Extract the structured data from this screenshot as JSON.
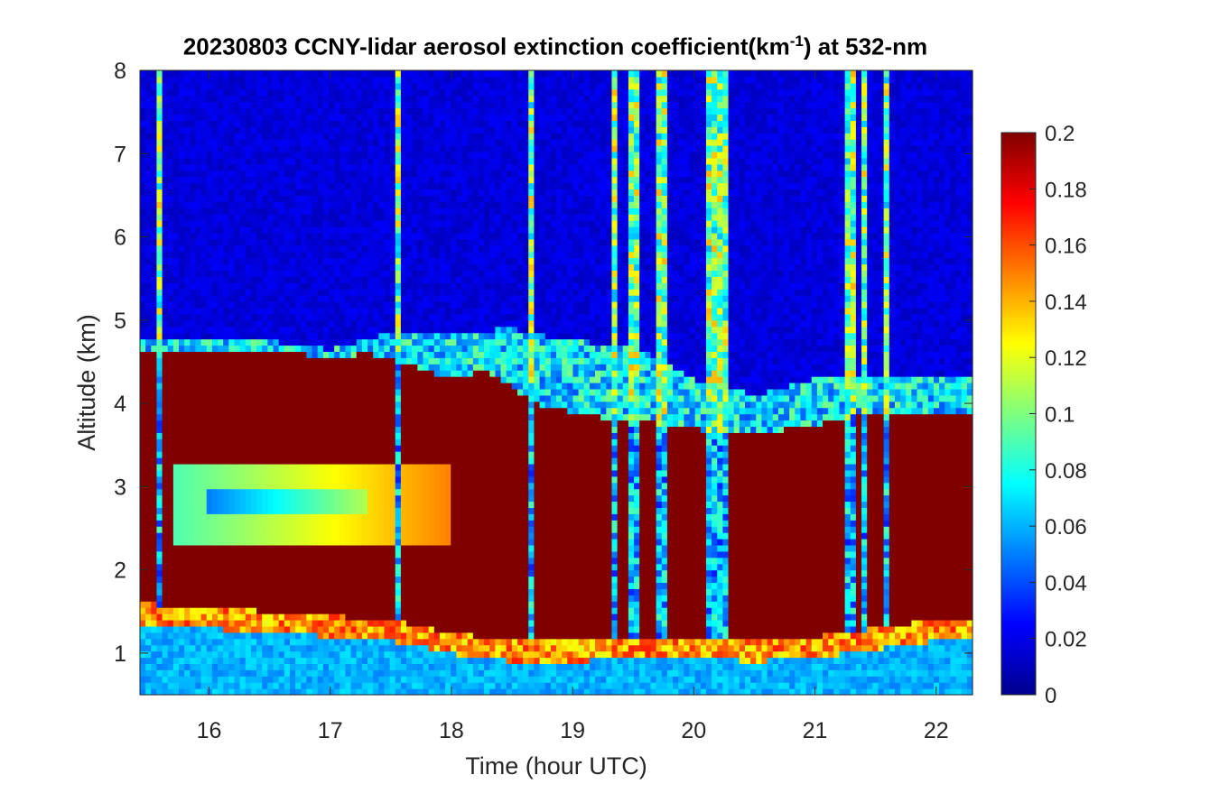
{
  "title": {
    "prefix": "20230803 CCNY-lidar aerosol extinction coefficient(km",
    "superscript": "-1",
    "suffix": ") at 532-nm"
  },
  "chart_data": {
    "type": "heatmap",
    "xlabel": "Time (hour UTC)",
    "ylabel": "Altitude (km)",
    "xlim": [
      15.43,
      22.3
    ],
    "ylim": [
      0.5,
      8
    ],
    "xticks": [
      16,
      17,
      18,
      19,
      20,
      21,
      22
    ],
    "yticks": [
      1,
      2,
      3,
      4,
      5,
      6,
      7,
      8
    ],
    "colorbar": {
      "colormap": "jet",
      "clim": [
        0,
        0.2
      ],
      "ticks": [
        "0",
        "0.02",
        "0.04",
        "0.06",
        "0.08",
        "0.1",
        "0.12",
        "0.14",
        "0.16",
        "0.18",
        "0.2"
      ]
    },
    "features": {
      "boundary_layer_top_km": [
        [
          15.43,
          1.6
        ],
        [
          16.0,
          1.55
        ],
        [
          16.5,
          1.5
        ],
        [
          17.0,
          1.45
        ],
        [
          17.5,
          1.4
        ],
        [
          18.0,
          1.25
        ],
        [
          18.5,
          1.15
        ],
        [
          19.0,
          1.15
        ],
        [
          19.5,
          1.2
        ],
        [
          20.0,
          1.2
        ],
        [
          20.5,
          1.15
        ],
        [
          21.0,
          1.2
        ],
        [
          21.5,
          1.3
        ],
        [
          22.0,
          1.4
        ],
        [
          22.3,
          1.4
        ]
      ],
      "smoke_layer_top_km": [
        [
          15.43,
          4.65
        ],
        [
          15.7,
          4.65
        ],
        [
          16.0,
          4.65
        ],
        [
          16.5,
          4.65
        ],
        [
          17.0,
          4.55
        ],
        [
          17.3,
          4.6
        ],
        [
          17.6,
          4.5
        ],
        [
          18.0,
          4.3
        ],
        [
          18.3,
          4.4
        ],
        [
          18.5,
          4.2
        ],
        [
          18.7,
          4.0
        ],
        [
          19.0,
          3.9
        ],
        [
          19.4,
          3.8
        ],
        [
          19.8,
          3.75
        ],
        [
          20.2,
          3.65
        ],
        [
          20.6,
          3.65
        ],
        [
          21.0,
          3.75
        ],
        [
          21.5,
          3.9
        ],
        [
          22.0,
          3.9
        ],
        [
          22.3,
          3.85
        ]
      ],
      "residual_layer_top_km": [
        [
          15.43,
          4.75
        ],
        [
          16.5,
          4.75
        ],
        [
          17.0,
          4.65
        ],
        [
          17.5,
          4.85
        ],
        [
          18.0,
          4.85
        ],
        [
          18.5,
          4.9
        ],
        [
          19.0,
          4.75
        ],
        [
          19.5,
          4.7
        ],
        [
          20.0,
          4.3
        ],
        [
          20.5,
          4.1
        ],
        [
          21.0,
          4.3
        ],
        [
          21.5,
          4.35
        ],
        [
          22.0,
          4.3
        ],
        [
          22.3,
          4.3
        ]
      ],
      "clear_air_bands_km": [
        {
          "x": [
            15.7,
            18.0
          ],
          "y": [
            2.3,
            3.25
          ],
          "level": 0.09
        },
        {
          "x": [
            16.0,
            17.3
          ],
          "y": [
            2.7,
            2.95
          ],
          "level": 0.05
        }
      ],
      "cloud_columns_hour": [
        15.6,
        17.55,
        18.65,
        19.35,
        19.5,
        19.73,
        20.15,
        20.25,
        21.3,
        21.4,
        21.6
      ]
    }
  }
}
